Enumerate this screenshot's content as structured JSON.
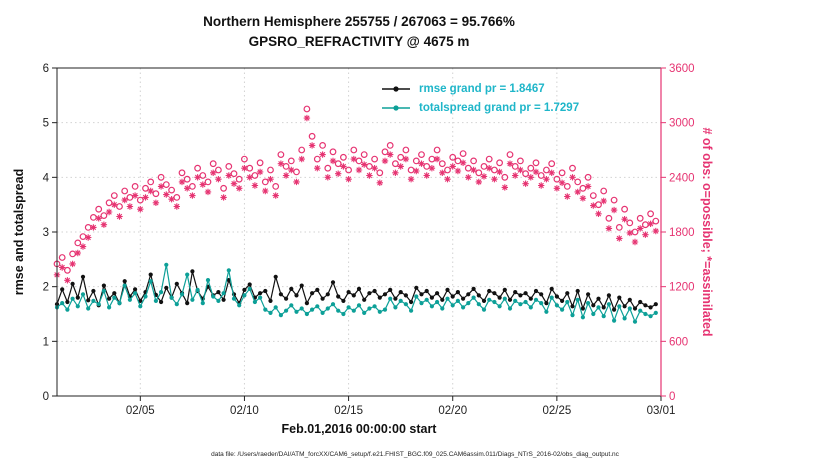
{
  "title": {
    "line1": "Northern Hemisphere 255755 / 267063 = 95.766%",
    "line2": "GPSRO_REFRACTIVITY @ 4675 m"
  },
  "axes": {
    "left_label": "rmse and totalspread",
    "right_label": "# of obs: o=possible; *=assimilated",
    "x_label": "Feb.01,2016 00:00:00 start"
  },
  "legend": [
    {
      "label": "rmse grand pr = 1.8467",
      "color": "#111111"
    },
    {
      "label": "totalspread grand pr = 1.7297",
      "color": "#0da098"
    }
  ],
  "colors": {
    "obs_pink": "#e63472",
    "spread_teal": "#0da098",
    "rmse_black": "#111111",
    "legend_text": "#1fb6c9",
    "grid": "#d2d2d2"
  },
  "caption": "data file: /Users/raeder/DAI/ATM_forcXX/CAM6_setup/f.e21.FHIST_BGC.f09_025.CAM6assim.011/Diags_NTrS_2016-02/obs_diag_output.nc",
  "chart_data": {
    "type": "line",
    "x_range": [
      1,
      30
    ],
    "left_range": [
      0,
      6
    ],
    "right_range": [
      0,
      3600
    ],
    "t_start": 1.0,
    "t_step": 0.25,
    "x_ticks": [
      {
        "t": 5,
        "label": "02/05"
      },
      {
        "t": 10,
        "label": "02/10"
      },
      {
        "t": 15,
        "label": "02/15"
      },
      {
        "t": 20,
        "label": "02/20"
      },
      {
        "t": 25,
        "label": "02/25"
      },
      {
        "t": 30,
        "label": "03/01"
      }
    ],
    "left_ticks": [
      0,
      1,
      2,
      3,
      4,
      5,
      6
    ],
    "right_ticks": [
      0,
      600,
      1200,
      1800,
      2400,
      3000,
      3600
    ],
    "series": [
      {
        "name": "rmse",
        "axis": "left",
        "render": "line-dot",
        "color": "#111111",
        "grand_mean": 1.8467,
        "values": [
          1.68,
          1.95,
          1.72,
          2.05,
          1.8,
          2.18,
          1.75,
          1.92,
          1.66,
          2.02,
          1.78,
          1.88,
          1.7,
          2.1,
          1.82,
          1.95,
          1.74,
          1.9,
          2.22,
          1.85,
          1.72,
          1.98,
          1.8,
          2.05,
          1.88,
          1.7,
          2.28,
          1.92,
          1.78,
          2.0,
          1.84,
          1.9,
          1.76,
          2.12,
          1.86,
          1.7,
          1.94,
          2.04,
          1.8,
          1.88,
          1.92,
          1.74,
          2.18,
          1.86,
          1.78,
          1.96,
          1.84,
          2.02,
          1.7,
          1.88,
          1.94,
          1.78,
          1.86,
          2.08,
          1.82,
          1.74,
          1.9,
          1.84,
          1.96,
          1.76,
          1.88,
          1.92,
          1.8,
          1.86,
          1.94,
          1.78,
          1.9,
          1.84,
          1.72,
          1.98,
          1.86,
          1.92,
          1.8,
          1.88,
          1.76,
          1.94,
          1.82,
          1.9,
          1.78,
          1.86,
          1.96,
          1.84,
          1.74,
          1.92,
          1.88,
          1.8,
          1.94,
          1.76,
          1.9,
          1.84,
          1.88,
          1.78,
          1.92,
          1.86,
          1.7,
          1.96,
          1.82,
          1.74,
          1.88,
          1.64,
          1.92,
          1.6,
          1.86,
          1.66,
          1.78,
          1.62,
          1.84,
          1.58,
          1.8,
          1.64,
          1.76,
          1.6,
          1.72,
          1.66,
          1.62,
          1.68
        ]
      },
      {
        "name": "totalspread",
        "axis": "left",
        "render": "line-dot",
        "color": "#0da098",
        "grand_mean": 1.7297,
        "values": [
          1.62,
          1.7,
          1.58,
          1.78,
          1.64,
          1.86,
          1.6,
          1.74,
          1.68,
          1.92,
          1.62,
          1.8,
          1.7,
          2.02,
          1.76,
          1.88,
          1.64,
          1.82,
          2.1,
          1.74,
          1.9,
          2.4,
          1.8,
          1.68,
          1.86,
          2.22,
          1.76,
          1.94,
          1.7,
          2.12,
          1.82,
          1.74,
          1.88,
          2.3,
          1.78,
          1.66,
          1.84,
          1.96,
          1.72,
          1.8,
          1.58,
          1.52,
          1.62,
          1.48,
          1.56,
          1.66,
          1.54,
          1.6,
          1.5,
          1.58,
          1.64,
          1.52,
          1.6,
          1.68,
          1.56,
          1.5,
          1.62,
          1.56,
          1.66,
          1.52,
          1.6,
          1.64,
          1.54,
          1.58,
          1.78,
          1.62,
          1.74,
          1.68,
          1.56,
          1.82,
          1.7,
          1.76,
          1.64,
          1.72,
          1.6,
          1.78,
          1.66,
          1.74,
          1.62,
          1.7,
          1.8,
          1.68,
          1.58,
          1.76,
          1.72,
          1.64,
          1.78,
          1.6,
          1.74,
          1.68,
          1.72,
          1.62,
          1.76,
          1.7,
          1.54,
          1.8,
          1.66,
          1.58,
          1.72,
          1.48,
          1.76,
          1.44,
          1.7,
          1.5,
          1.62,
          1.46,
          1.68,
          1.38,
          1.64,
          1.42,
          1.6,
          1.36,
          1.56,
          1.5,
          1.46,
          1.52
        ]
      },
      {
        "name": "possible",
        "axis": "right",
        "render": "scatter-circle",
        "color": "#e63472",
        "total": 267063,
        "values": [
          1450,
          1520,
          1380,
          1560,
          1680,
          1750,
          1850,
          1960,
          2050,
          1980,
          2120,
          2200,
          2080,
          2250,
          2180,
          2300,
          2150,
          2280,
          2350,
          2220,
          2400,
          2320,
          2260,
          2180,
          2450,
          2380,
          2300,
          2500,
          2420,
          2350,
          2550,
          2480,
          2280,
          2520,
          2440,
          2380,
          2600,
          2500,
          2420,
          2560,
          2350,
          2480,
          2300,
          2650,
          2520,
          2580,
          2460,
          2700,
          3150,
          2850,
          2600,
          2750,
          2500,
          2680,
          2550,
          2620,
          2480,
          2700,
          2580,
          2650,
          2520,
          2600,
          2450,
          2680,
          2750,
          2550,
          2620,
          2700,
          2480,
          2580,
          2650,
          2520,
          2600,
          2700,
          2550,
          2480,
          2620,
          2580,
          2660,
          2500,
          2580,
          2450,
          2520,
          2600,
          2480,
          2560,
          2400,
          2650,
          2520,
          2580,
          2440,
          2500,
          2560,
          2420,
          2480,
          2550,
          2380,
          2450,
          2300,
          2500,
          2350,
          2280,
          2400,
          2200,
          2100,
          2250,
          1950,
          2150,
          1850,
          2050,
          1900,
          1800,
          1950,
          1880,
          2000,
          1920
        ]
      },
      {
        "name": "assimilated",
        "axis": "right",
        "render": "scatter-asterisk",
        "color": "#e63472",
        "total": 255755,
        "values": [
          1330,
          1410,
          1270,
          1450,
          1570,
          1640,
          1740,
          1850,
          1950,
          1880,
          2020,
          2100,
          1970,
          2150,
          2080,
          2200,
          2050,
          2180,
          2250,
          2120,
          2300,
          2210,
          2160,
          2080,
          2350,
          2280,
          2200,
          2400,
          2320,
          2240,
          2450,
          2380,
          2180,
          2420,
          2330,
          2280,
          2500,
          2400,
          2310,
          2460,
          2250,
          2380,
          2200,
          2550,
          2420,
          2480,
          2350,
          2600,
          3050,
          2750,
          2500,
          2650,
          2400,
          2580,
          2440,
          2520,
          2380,
          2600,
          2480,
          2540,
          2420,
          2500,
          2340,
          2580,
          2650,
          2450,
          2520,
          2600,
          2380,
          2470,
          2550,
          2420,
          2500,
          2600,
          2450,
          2380,
          2520,
          2470,
          2560,
          2400,
          2480,
          2350,
          2410,
          2500,
          2380,
          2460,
          2290,
          2550,
          2420,
          2480,
          2330,
          2400,
          2460,
          2310,
          2380,
          2450,
          2280,
          2340,
          2190,
          2400,
          2240,
          2170,
          2300,
          2090,
          2000,
          2140,
          1840,
          2040,
          1730,
          1940,
          1790,
          1690,
          1840,
          1770,
          1890,
          1810
        ]
      }
    ]
  }
}
